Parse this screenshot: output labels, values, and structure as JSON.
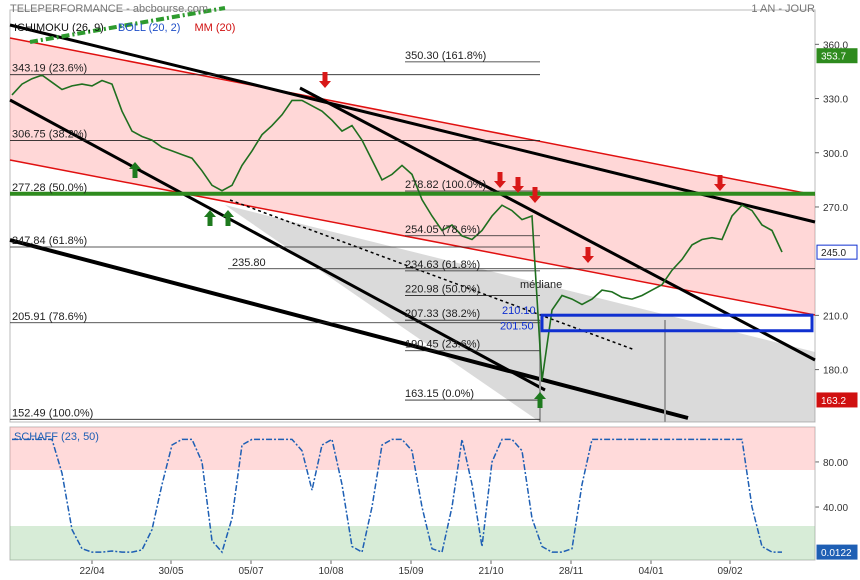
{
  "header": {
    "title": "TELEPERFORMANCE - abcbourse.com",
    "period": "1 AN - JOUR"
  },
  "chart_data": [
    {
      "type": "line",
      "indicators": [
        {
          "name": "ICHIMOKU (26, 9)",
          "color": "#111111"
        },
        {
          "name": "BOLL (20, 2)",
          "color": "#1f4fc8"
        },
        {
          "name": "MM (20)",
          "color": "#d01010"
        }
      ],
      "xlim": [
        -0.2,
        80.3
      ],
      "xticks": [
        {
          "value": 8,
          "label": "22/04"
        },
        {
          "value": 15.9,
          "label": "30/05"
        },
        {
          "value": 23.9,
          "label": "05/07"
        },
        {
          "value": 31.9,
          "label": "10/08"
        },
        {
          "value": 39.9,
          "label": "15/09"
        },
        {
          "value": 47.9,
          "label": "21/10"
        },
        {
          "value": 55.9,
          "label": "28/11"
        },
        {
          "value": 63.9,
          "label": "04/01"
        },
        {
          "value": 71.8,
          "label": "09/02"
        }
      ],
      "ylim": [
        151,
        379
      ],
      "yticks": [
        {
          "value": 360,
          "label": "360.0"
        },
        {
          "value": 330,
          "label": "330.0"
        },
        {
          "value": 300,
          "label": "300.0"
        },
        {
          "value": 270,
          "label": "270.0"
        },
        {
          "value": 210,
          "label": "210.0"
        },
        {
          "value": 180,
          "label": "180.0"
        }
      ],
      "series": [
        {
          "color": "#1f6f1f",
          "values": [
            332,
            338,
            341,
            343,
            339,
            335,
            337,
            338,
            337,
            340,
            338,
            323,
            312,
            309,
            307,
            303,
            301,
            299,
            297,
            290,
            282,
            279,
            282,
            293,
            301,
            310,
            315,
            321,
            329,
            329,
            326,
            323,
            318,
            312,
            315,
            307,
            296,
            285,
            288,
            293,
            288,
            274,
            265,
            257,
            260,
            254,
            252,
            257,
            265,
            271,
            268,
            263,
            265,
            174,
            213,
            221,
            219,
            216,
            219,
            224,
            223,
            220,
            219,
            221,
            224,
            227,
            235,
            241,
            249,
            252,
            253,
            252,
            265,
            271,
            268,
            260,
            257,
            245
          ]
        }
      ],
      "fibonacci": [
        {
          "levels": [
            {
              "value": 343.19,
              "label": "343.19 (23.6%)"
            },
            {
              "value": 306.75,
              "label": "306.75 (38.2%)"
            },
            {
              "value": 277.28,
              "label": "277.28 (50.0%)",
              "color": "#2e8b1e"
            },
            {
              "value": 247.84,
              "label": "247.84 (61.8%)"
            },
            {
              "value": 205.91,
              "label": "205.91 (78.6%)"
            },
            {
              "value": 152.49,
              "label": "152.49 (100.0%)"
            }
          ]
        },
        {
          "levels": [
            {
              "value": 350.3,
              "label": "350.30 (161.8%)"
            },
            {
              "value": 278.82,
              "label": "278.82 (100.0%)"
            },
            {
              "value": 254.05,
              "label": "254.05 (78.6%)"
            },
            {
              "value": 234.63,
              "label": "234.63 (61.8%)"
            },
            {
              "value": 220.98,
              "label": "220.98 (50.0%)"
            },
            {
              "value": 207.33,
              "label": "207.33 (38.2%)"
            },
            {
              "value": 190.45,
              "label": "190.45 (23.6%)"
            },
            {
              "value": 163.15,
              "label": "163.15 (0.0%)"
            }
          ]
        }
      ],
      "level": {
        "value": 235.8,
        "label": "235.80"
      },
      "zone": [
        {
          "value": 210.1,
          "label": "210.10"
        },
        {
          "value": 201.5,
          "label": "201.50"
        }
      ],
      "annotation": "médiane",
      "last_values": [
        {
          "value": 353.7,
          "color": "#2e8b1e"
        },
        {
          "value": 245,
          "label": "245.0",
          "color": "#ffffff"
        },
        {
          "value": 163.2,
          "color": "#d01010"
        }
      ]
    },
    {
      "type": "line",
      "title": "SCHAFF (23, 50)",
      "xlim": [
        -0.2,
        80.3
      ],
      "ylim": [
        -7,
        111
      ],
      "yticks": [
        {
          "value": 80,
          "label": "80.00"
        },
        {
          "value": 40,
          "label": "40.00"
        }
      ],
      "series": [
        {
          "color": "#1e5fb4",
          "values": [
            100,
            100,
            100,
            100,
            100,
            70,
            20,
            3,
            0,
            0,
            1,
            0,
            0,
            2,
            20,
            60,
            95,
            100,
            100,
            80,
            10,
            0,
            30,
            95,
            100,
            100,
            100,
            100,
            100,
            90,
            55,
            95,
            100,
            60,
            5,
            0,
            40,
            95,
            100,
            100,
            90,
            40,
            3,
            0,
            40,
            100,
            60,
            5,
            80,
            100,
            100,
            90,
            30,
            5,
            0,
            0,
            3,
            60,
            100,
            100,
            100,
            100,
            100,
            100,
            100,
            100,
            100,
            100,
            100,
            100,
            100,
            100,
            100,
            100,
            40,
            5,
            0,
            0.0122
          ]
        }
      ],
      "last_value": {
        "value": 0.0122,
        "color": "#1e5fb4"
      }
    }
  ]
}
